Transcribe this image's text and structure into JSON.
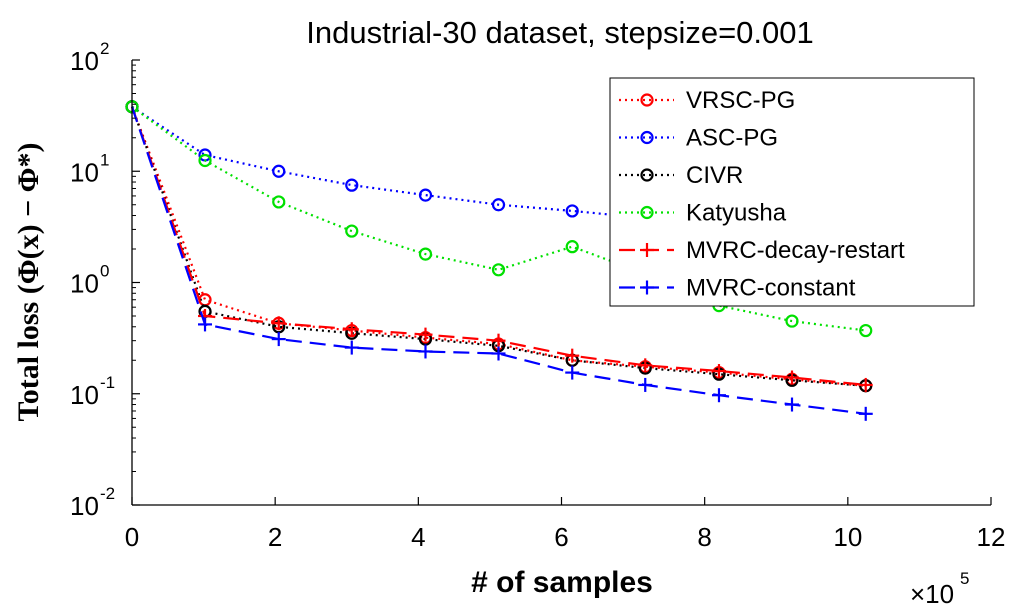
{
  "chart_data": {
    "type": "line",
    "title": "Industrial-30 dataset, stepsize=0.001",
    "xlabel": "# of samples",
    "ylabel": "Total loss (Φ(x) − Φ*)",
    "x_scale_note": {
      "base": "×10",
      "exp": "5"
    },
    "xlim": [
      0,
      12
    ],
    "ylim": [
      0.01,
      100
    ],
    "yscale": "log",
    "grid": false,
    "legend_position": "top-right",
    "x_ticks": [
      "0",
      "2",
      "4",
      "6",
      "8",
      "10",
      "12"
    ],
    "y_ticks": [
      {
        "base": "10",
        "exp": "-2"
      },
      {
        "base": "10",
        "exp": "-1"
      },
      {
        "base": "10",
        "exp": "0"
      },
      {
        "base": "10",
        "exp": "1"
      },
      {
        "base": "10",
        "exp": "2"
      }
    ],
    "series": [
      {
        "name": "VRSC-PG",
        "color": "#ff0000",
        "dash": "dotted",
        "marker": "circle",
        "x": [
          0,
          1.02,
          2.05,
          3.07,
          4.1,
          5.12,
          6.15,
          7.17,
          8.2,
          9.22,
          10.25
        ],
        "y": [
          38,
          0.7,
          0.43,
          0.37,
          0.32,
          0.28,
          0.2,
          0.175,
          0.155,
          0.135,
          0.118
        ],
        "markers_at": [
          0,
          1,
          2,
          3,
          4,
          5,
          6,
          7,
          8,
          9,
          10
        ]
      },
      {
        "name": "ASC-PG",
        "color": "#0000ff",
        "dash": "dotted",
        "marker": "circle",
        "x": [
          0,
          1.02,
          2.05,
          3.07,
          4.1,
          5.12,
          6.15,
          7.17,
          8.2,
          9.22,
          10.25
        ],
        "y": [
          38,
          14,
          10,
          7.5,
          6.1,
          5.0,
          4.4,
          3.8,
          3.3,
          2.9,
          2.6
        ],
        "markers_at": [
          0,
          1,
          2,
          3,
          4,
          5,
          6
        ]
      },
      {
        "name": "CIVR",
        "color": "#000000",
        "dash": "dotted",
        "marker": "circle",
        "x": [
          0,
          1.02,
          2.05,
          3.07,
          4.1,
          5.12,
          6.15,
          7.17,
          8.2,
          9.22,
          10.25
        ],
        "y": [
          38,
          0.55,
          0.4,
          0.35,
          0.31,
          0.27,
          0.2,
          0.17,
          0.15,
          0.132,
          0.118
        ],
        "markers_at": [
          0,
          1,
          2,
          3,
          4,
          5,
          6,
          7,
          8,
          9,
          10
        ]
      },
      {
        "name": "Katyusha",
        "color": "#00e000",
        "dash": "dotted",
        "marker": "circle",
        "x": [
          0,
          1.02,
          2.05,
          3.07,
          4.1,
          5.12,
          6.15,
          7.17,
          8.2,
          9.22,
          10.25
        ],
        "y": [
          38,
          12.5,
          5.3,
          2.9,
          1.8,
          1.3,
          2.1,
          1.2,
          0.62,
          0.45,
          0.37
        ],
        "markers_at": [
          0,
          1,
          2,
          3,
          4,
          5,
          6,
          8,
          9,
          10
        ]
      },
      {
        "name": "MVRC-decay-restart",
        "color": "#ff0000",
        "dash": "dashed",
        "marker": "plus",
        "x": [
          0,
          1.02,
          2.05,
          3.07,
          4.1,
          5.12,
          6.15,
          7.17,
          8.2,
          9.22,
          10.25
        ],
        "y": [
          38,
          0.5,
          0.43,
          0.38,
          0.34,
          0.3,
          0.22,
          0.18,
          0.16,
          0.14,
          0.12
        ],
        "markers_at": [
          1,
          2,
          3,
          4,
          5,
          6,
          7,
          8,
          9,
          10
        ]
      },
      {
        "name": "MVRC-constant",
        "color": "#0000ff",
        "dash": "dashed",
        "marker": "plus",
        "x": [
          0,
          1.02,
          2.05,
          3.07,
          4.1,
          5.12,
          6.15,
          7.17,
          8.2,
          9.22,
          10.25
        ],
        "y": [
          38,
          0.42,
          0.31,
          0.26,
          0.24,
          0.23,
          0.155,
          0.12,
          0.097,
          0.08,
          0.066
        ],
        "markers_at": [
          1,
          2,
          3,
          4,
          5,
          6,
          7,
          8,
          9,
          10
        ]
      }
    ]
  }
}
